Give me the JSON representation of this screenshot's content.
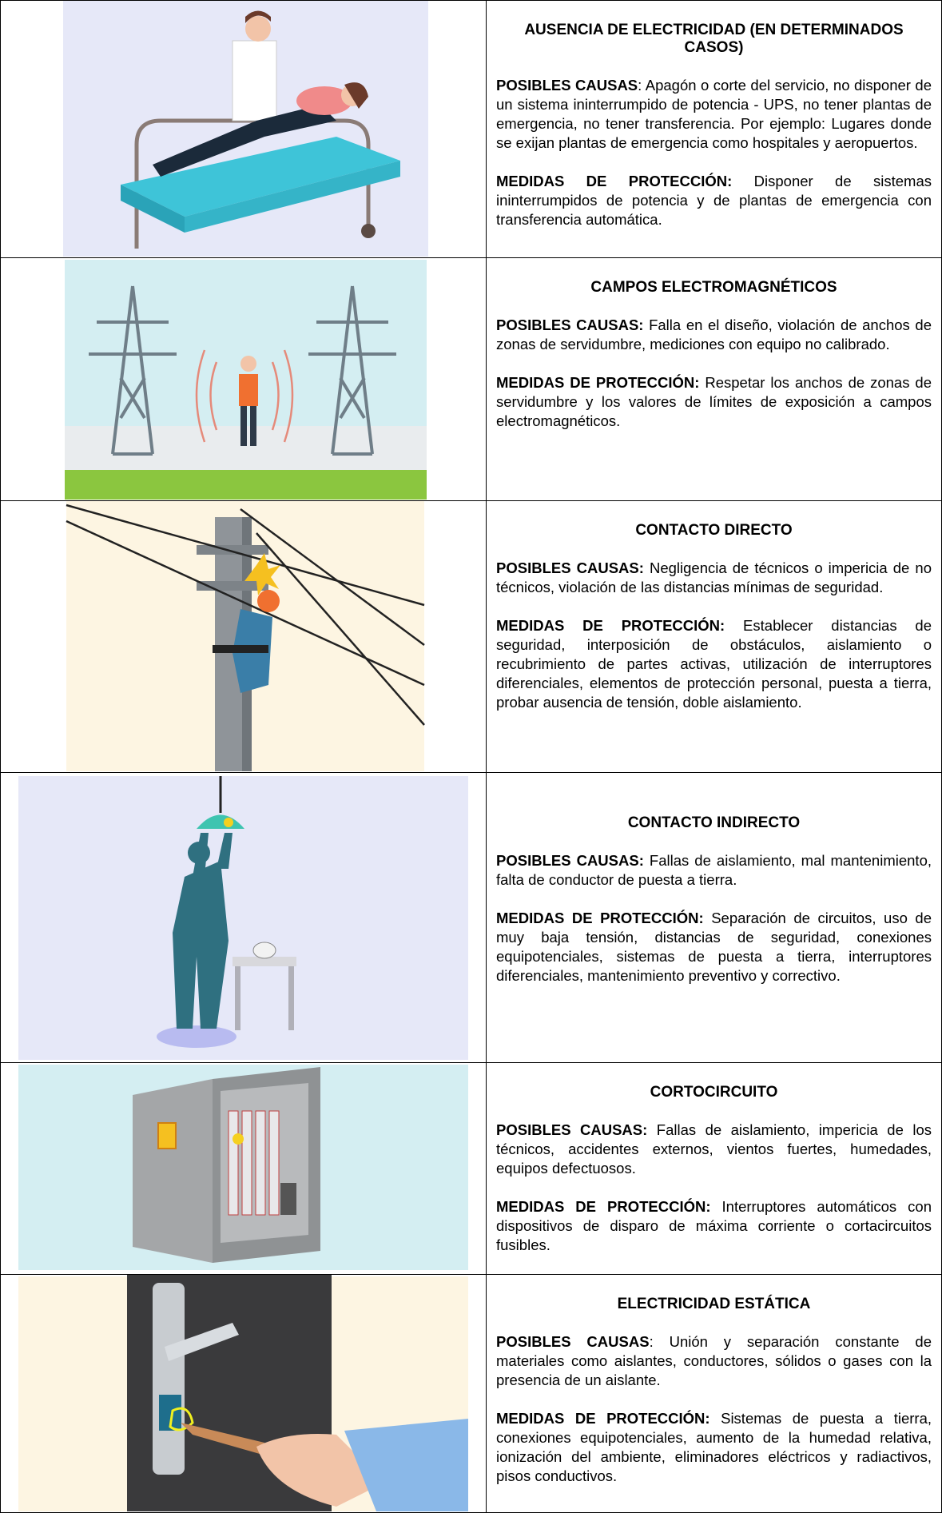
{
  "rows": [
    {
      "title": "AUSENCIA DE ELECTRICIDAD (EN DETERMINADOS CASOS)",
      "causes_label": "POSIBLES CAUSAS",
      "causes": ": Apagón o corte del servicio, no disponer de un sistema ininterrumpido de potencia - UPS, no tener plantas de emergencia, no tener transferencia. Por ejemplo: Lugares donde se exijan plantas de emergencia como hospitales y aeropuertos.",
      "measures_label": "MEDIDAS DE PROTECCIÓN:",
      "measures": " Disponer de sistemas ininterrumpidos de potencia y de plantas de emergencia con transferencia automática."
    },
    {
      "title": "CAMPOS ELECTROMAGNÉTICOS",
      "causes_label": "POSIBLES CAUSAS:",
      "causes": " Falla en el diseño, violación de anchos de zonas de servidumbre, mediciones con equipo no calibrado.",
      "measures_label": "MEDIDAS DE PROTECCIÓN:",
      "measures": " Respetar los anchos de zonas de servidumbre y los valores de límites de exposición a campos electromagnéticos."
    },
    {
      "title": "CONTACTO DIRECTO",
      "causes_label": "POSIBLES CAUSAS:",
      "causes": " Negligencia de técnicos o impericia de no técnicos, violación de las distancias mínimas de seguridad.",
      "measures_label": "MEDIDAS DE PROTECCIÓN:",
      "measures": " Establecer distancias de seguridad, interposición de obstáculos, aislamiento o recubrimiento de partes activas, utilización de interruptores diferenciales, elementos de protección personal, puesta a tierra, probar ausencia de tensión, doble aislamiento."
    },
    {
      "title": "CONTACTO INDIRECTO",
      "causes_label": "POSIBLES CAUSAS:",
      "causes": " Fallas de aislamiento, mal mantenimiento, falta de conductor de puesta a tierra.",
      "measures_label": "MEDIDAS DE PROTECCIÓN:",
      "measures": " Separación de circuitos, uso de muy baja tensión, distancias de seguridad, conexiones equipotenciales, sistemas de puesta a tierra, interruptores diferenciales, mantenimiento preventivo y correctivo."
    },
    {
      "title": "CORTOCIRCUITO",
      "causes_label": "POSIBLES CAUSAS:",
      "causes": " Fallas de aislamiento, impericia de los técnicos, accidentes externos, vientos fuertes, humedades, equipos defectuosos.",
      "measures_label": "MEDIDAS DE PROTECCIÓN:",
      "measures": " Interruptores automáticos con dispositivos de disparo de máxima corriente o cortacircuitos fusibles."
    },
    {
      "title": "ELECTRICIDAD ESTÁTICA",
      "causes_label": "POSIBLES CAUSAS",
      "causes": ": Unión y separación constante de materiales como aislantes, conductores, sólidos o gases con la presencia de un aislante.",
      "measures_label": "MEDIDAS DE PROTECCIÓN:",
      "measures": " Sistemas de puesta a tierra, conexiones equipotenciales, aumento de la humedad relativa, ionización del ambiente, eliminadores eléctricos y radiactivos, pisos conductivos."
    }
  ]
}
